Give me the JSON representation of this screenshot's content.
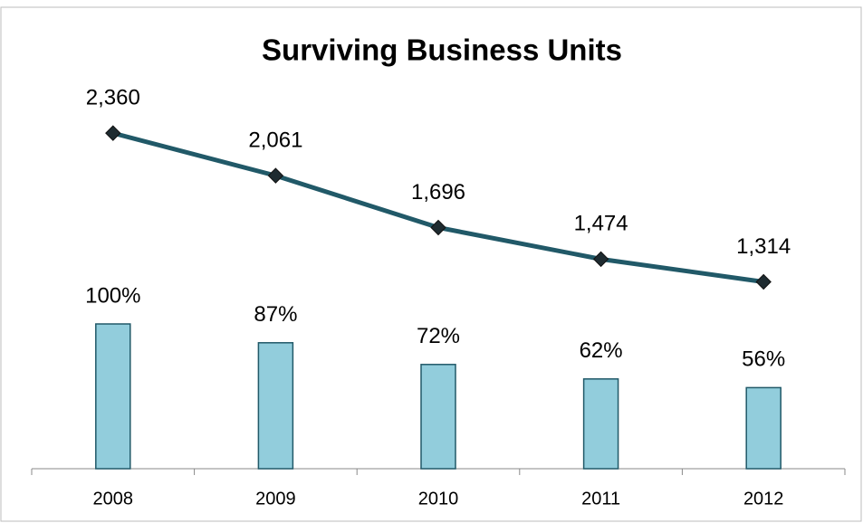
{
  "chart_data": {
    "type": "combo",
    "title": "Surviving Business Units",
    "categories": [
      "2008",
      "2009",
      "2010",
      "2011",
      "2012"
    ],
    "series": [
      {
        "type": "bar",
        "color": "#92cddc",
        "values": [
          100,
          87,
          72,
          62,
          56
        ],
        "value_labels": [
          "100%",
          "87%",
          "72%",
          "62%",
          "56%"
        ]
      },
      {
        "type": "line",
        "axis": "y2",
        "color": "#215968",
        "values": [
          2360,
          2061,
          1696,
          1474,
          1314
        ],
        "value_labels": [
          "2,360",
          "2,061",
          "1,696",
          "1,474",
          "1,314"
        ]
      }
    ],
    "ylim": [
      0,
      275
    ],
    "y2lim": [
      0,
      2800
    ]
  }
}
